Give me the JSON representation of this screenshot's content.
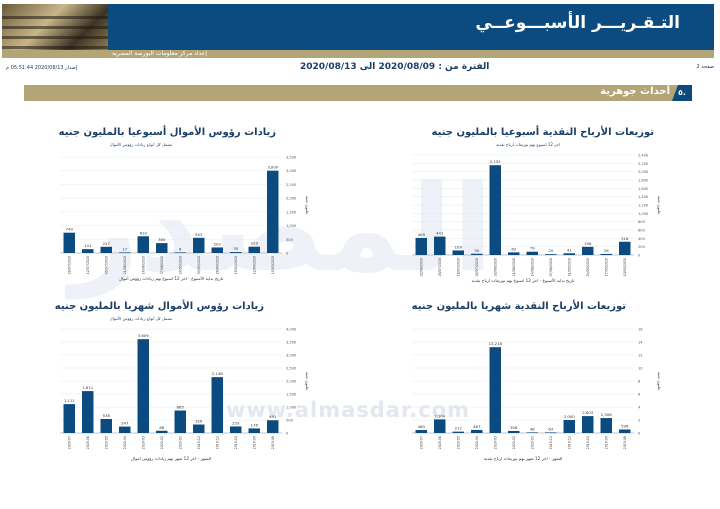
{
  "header": {
    "title": "التـقـريـــر الأسبـــوعــي",
    "subtitle": "إعداد مركز معلومات البورصة المصرية"
  },
  "meta": {
    "page": "صفحة 2",
    "period": "الفترة من : 2020/08/09 الى 2020/08/13",
    "issued": "إصدار 2020/08/13 05:51:44 م"
  },
  "section": {
    "number": "٥.",
    "title": "أحداث جوهرية"
  },
  "watermark": {
    "logo": "المصدر",
    "url": "www.almasdar.com"
  },
  "colors": {
    "bar": "#0b4b80",
    "header": "#0b4b80",
    "gold": "#b3a576",
    "text": "#1b3f66"
  },
  "chart_data": [
    {
      "type": "bar",
      "title": "توزيعات الأرباح النقدية أسبوعيا بالمليون جنيه",
      "subtitle": "اخر 12 اسبوع بهم توزيعات ارباح نقدية",
      "xlabel": "تاريخ بداية الأسبوع - اخر 12 اسبوع بهم توزيعات ارباح نقدية",
      "ylabel": "مليون جنيه",
      "ylim": [
        0,
        2400
      ],
      "yticks": [
        "0",
        "200",
        "400",
        "600",
        "800",
        "1,000",
        "1,200",
        "1,400",
        "1,600",
        "1,800",
        "2,000",
        "2,200",
        "2,400"
      ],
      "categories": [
        "02/08/2020",
        "26/07/2020",
        "19/07/2020",
        "05/07/2020",
        "28/06/2020",
        "21/06/2020",
        "14/06/2020",
        "07/06/2020",
        "31/05/2020",
        "24/05/2020",
        "17/05/2020",
        "10/05/2020"
      ],
      "values": [
        409,
        441,
        109,
        30,
        2155,
        63,
        79,
        20,
        41,
        196,
        26,
        318
      ],
      "labels": [
        "409",
        "441",
        "109",
        "30",
        "2,155",
        "63",
        "79",
        "20",
        "41",
        "196",
        "26",
        "318"
      ]
    },
    {
      "type": "bar",
      "title": "زيادات رؤوس الأموال أسبوعيا بالمليون جنيه",
      "subtitle": "تشمل كل أنواع زيادات رؤوس الأموال",
      "xlabel": "تاريخ بداية الأسبوع - اخر 12 اسبوع بهم زيادات رؤوس أموال",
      "ylabel": "مليون جنيه",
      "ylim": [
        0,
        3500
      ],
      "yticks": [
        "0",
        "500",
        "1,000",
        "1,500",
        "2,000",
        "2,500",
        "3,000",
        "3,500"
      ],
      "categories": [
        "26/07/2020",
        "12/07/2020",
        "05/07/2020",
        "21/06/2020",
        "14/06/2020",
        "07/06/2020",
        "24/05/2020",
        "03/05/2020",
        "26/04/2020",
        "19/04/2020",
        "12/04/2020",
        "15/03/2020"
      ],
      "values": [
        740,
        141,
        227,
        17,
        610,
        360,
        6,
        553,
        202,
        35,
        229,
        3000
      ],
      "labels": [
        "740",
        "141",
        "227",
        "17",
        "610",
        "360",
        "6",
        "553",
        "202",
        "35",
        "229",
        "3,000"
      ]
    },
    {
      "type": "bar",
      "title": "توزيعات الأرباح النقدية شهريا بالمليون جنيه",
      "subtitle": "",
      "xlabel": "الشهر - اخر 12 شهر بهم توزيعات ارباح نقدية",
      "ylabel": "مليون جنيه",
      "ylim": [
        0,
        16
      ],
      "yticks": [
        "0",
        "2",
        "4",
        "6",
        "8",
        "10",
        "12",
        "14",
        "16"
      ],
      "categories": [
        "2020-07",
        "2020-06",
        "2020-05",
        "2020-04",
        "2020-03",
        "2020-02",
        "2020-01",
        "2019-12",
        "2019-11",
        "2019-10",
        "2019-09",
        "2019-08"
      ],
      "values": [
        0.46,
        2.1,
        0.21,
        0.47,
        13.2,
        0.31,
        0.05,
        0.06,
        2.0,
        2.6,
        2.3,
        0.54
      ],
      "labels": [
        "460",
        "2,104",
        "212",
        "467",
        "13,218",
        "306",
        "48",
        "63",
        "2,000",
        "2,603",
        "2,306",
        "536"
      ]
    },
    {
      "type": "bar",
      "title": "زيادات رؤوس الأموال شهريا بالمليون جنيه",
      "subtitle": "تشمل كل أنواع زيادات رؤوس الأموال",
      "xlabel": "الشهر - اخر 12 شهر بهم زيادات رؤوس اموال",
      "ylabel": "مليون جنيه",
      "ylim": [
        0,
        4000
      ],
      "yticks": [
        "0",
        "500",
        "1,000",
        "1,500",
        "2,000",
        "2,500",
        "3,000",
        "3,500",
        "4,000"
      ],
      "categories": [
        "2020-07",
        "2020-06",
        "2020-05",
        "2020-04",
        "2020-03",
        "2020-02",
        "2020-01",
        "2019-12",
        "2019-11",
        "2019-10",
        "2019-09",
        "2019-08"
      ],
      "values": [
        1111,
        1611,
        538,
        247,
        3609,
        86,
        865,
        326,
        2148,
        253,
        176,
        491
      ],
      "labels": [
        "1,111",
        "1,611",
        "538",
        "247",
        "3,609",
        "86",
        "865",
        "326",
        "2,148",
        "253",
        "176",
        "491"
      ]
    }
  ]
}
